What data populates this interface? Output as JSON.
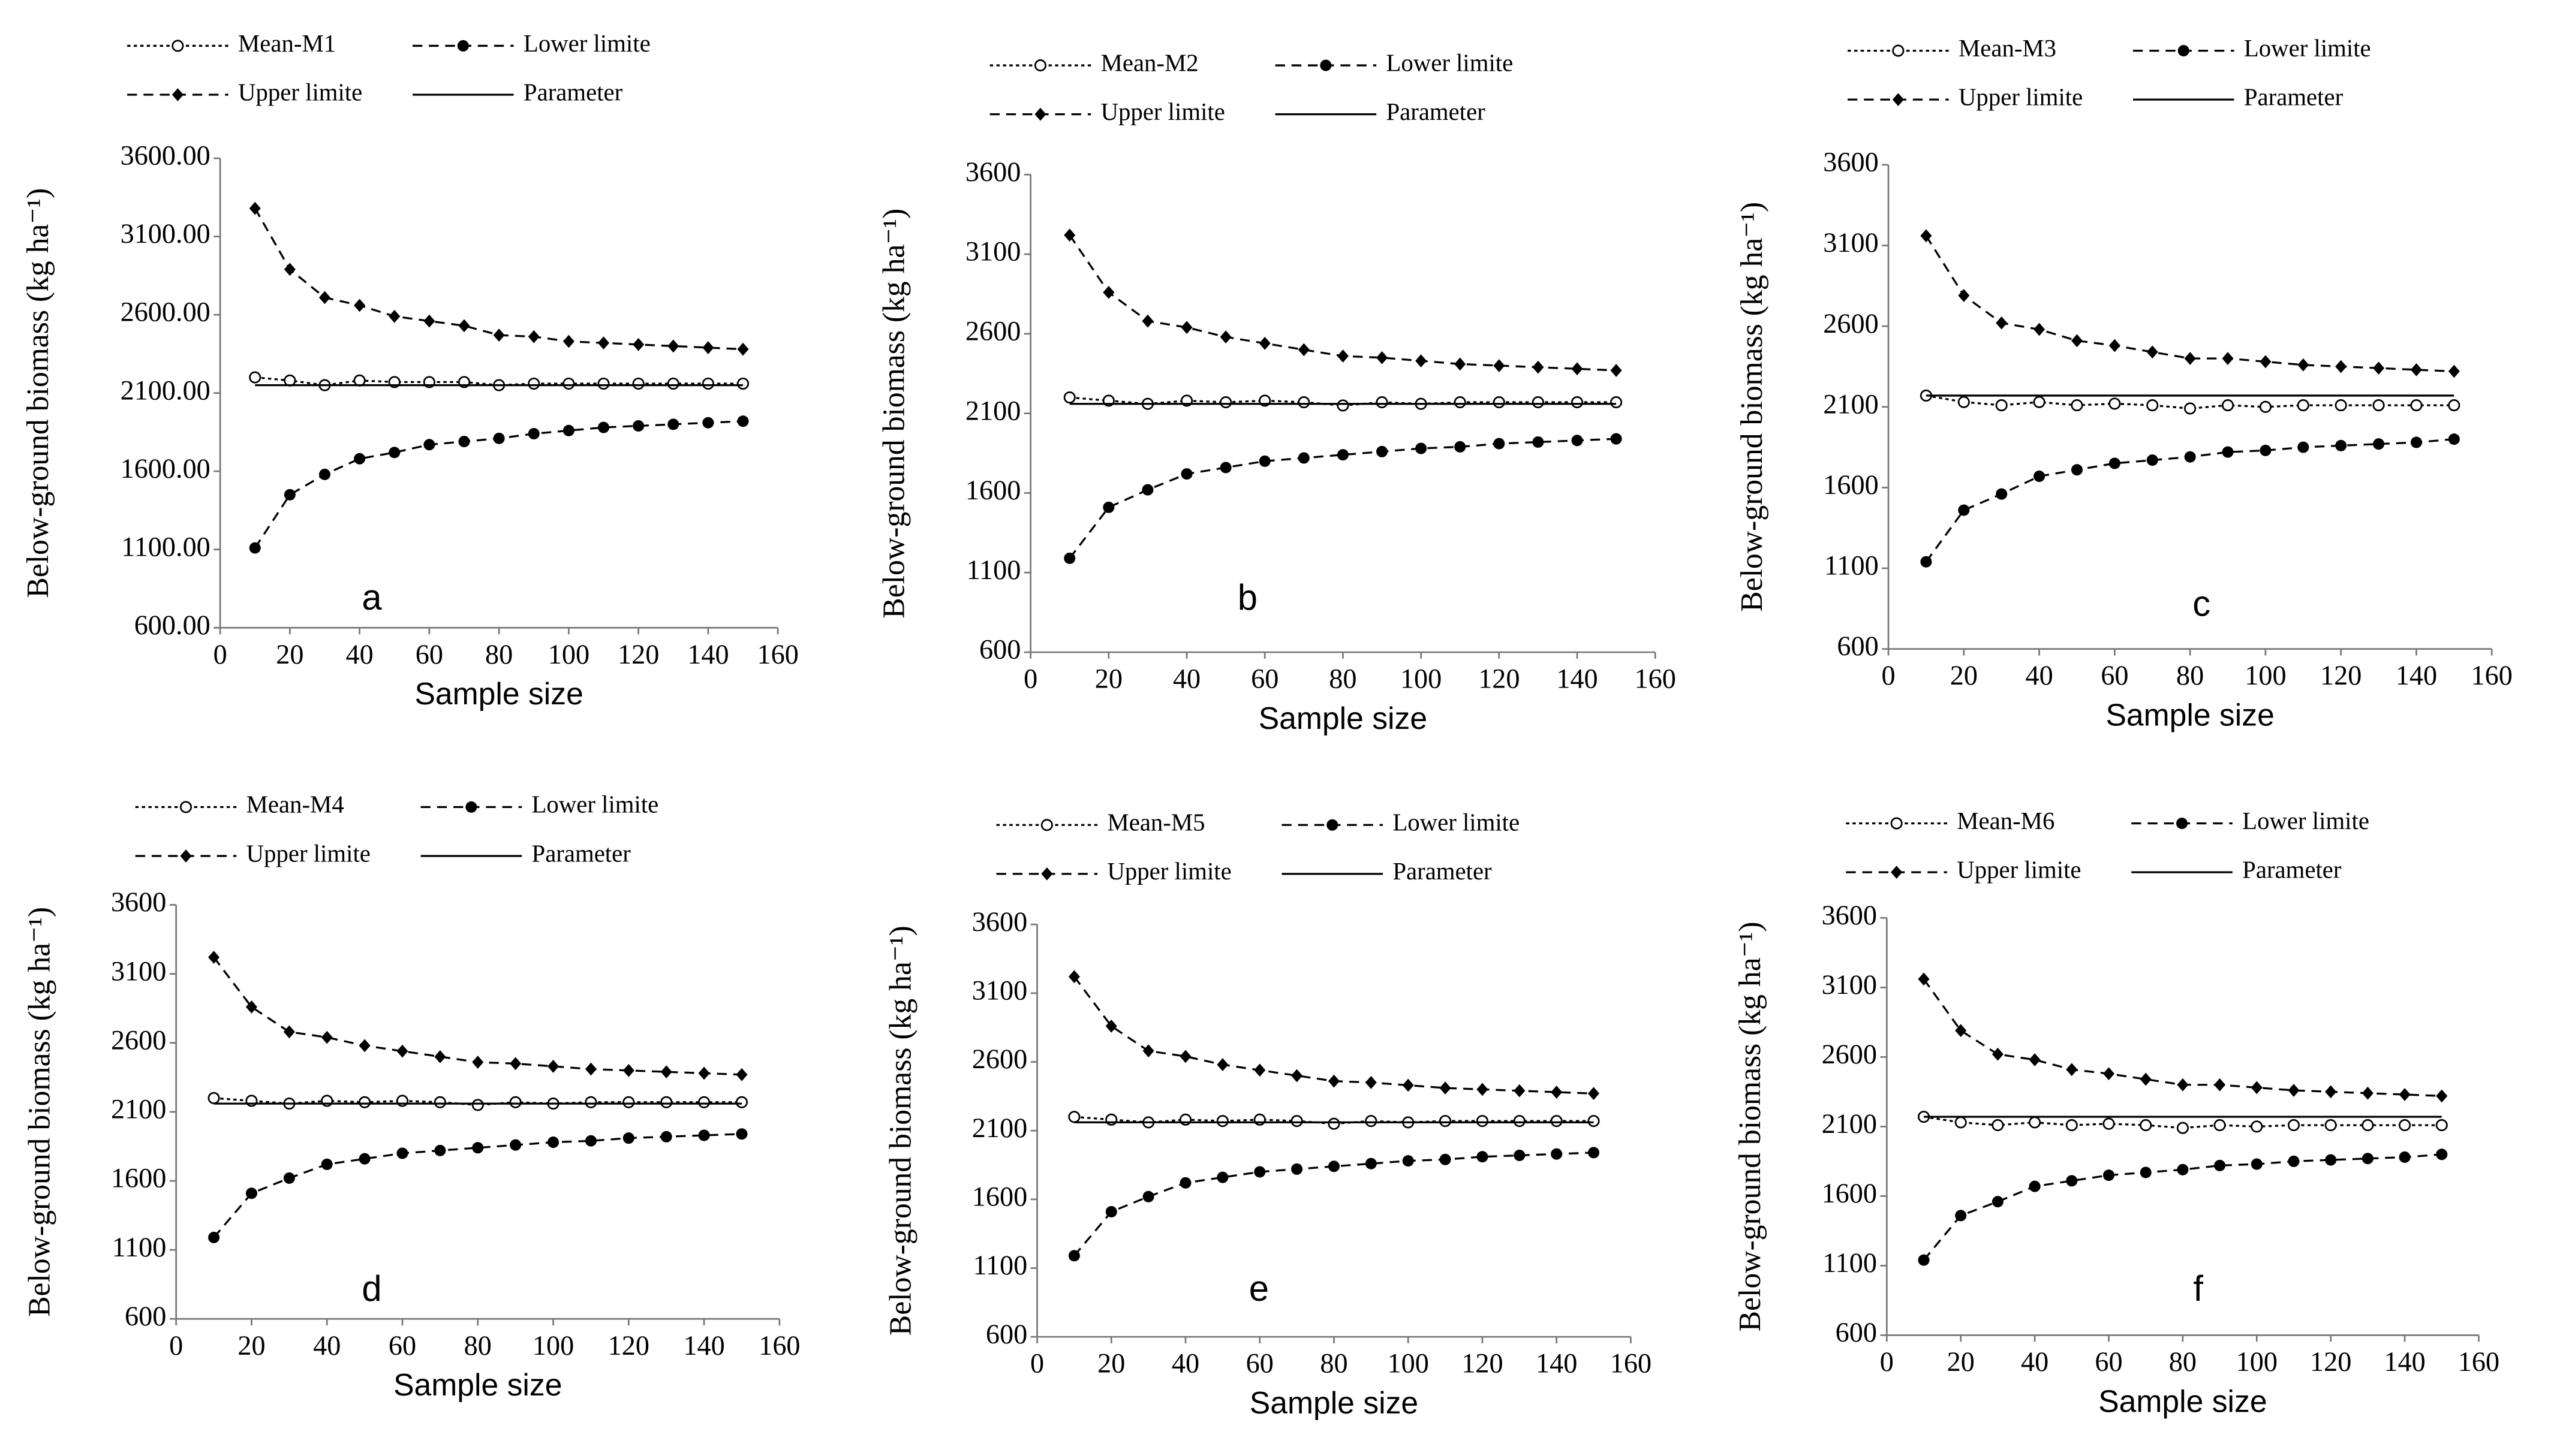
{
  "chart_data": [
    {
      "type": "line",
      "annotation": "a",
      "x_label": "Sample size",
      "y_label": "Below-ground biomass (kg ha⁻¹)",
      "x": [
        10,
        20,
        30,
        40,
        50,
        60,
        70,
        80,
        90,
        100,
        110,
        120,
        130,
        140,
        150
      ],
      "xlim": [
        0,
        160
      ],
      "xticks": [
        0,
        20,
        40,
        60,
        80,
        100,
        120,
        140,
        160
      ],
      "ylim": [
        600,
        3600
      ],
      "yticks": [
        {
          "value": 600,
          "label": "600.00"
        },
        {
          "value": 1100,
          "label": "1100.00"
        },
        {
          "value": 1600,
          "label": "1600.00"
        },
        {
          "value": 2100,
          "label": "2100.00"
        },
        {
          "value": 2600,
          "label": "2600.00"
        },
        {
          "value": 3100,
          "label": "3100.00"
        },
        {
          "value": 3600,
          "label": "3600.00"
        }
      ],
      "series": [
        {
          "name": "Mean-M1",
          "color": "#000000",
          "style": "dotted",
          "marker": "open-circle",
          "values": [
            2200,
            2180,
            2150,
            2180,
            2170,
            2170,
            2170,
            2150,
            2160,
            2160,
            2160,
            2160,
            2160,
            2160,
            2160
          ]
        },
        {
          "name": "Lower limite",
          "color": "#000000",
          "style": "dashed",
          "marker": "circle",
          "values": [
            1110,
            1450,
            1580,
            1680,
            1720,
            1770,
            1790,
            1810,
            1840,
            1860,
            1880,
            1890,
            1900,
            1910,
            1920
          ]
        },
        {
          "name": "Upper limite",
          "color": "#000000",
          "style": "dashed",
          "marker": "diamond",
          "values": [
            3280,
            2890,
            2710,
            2660,
            2590,
            2560,
            2530,
            2470,
            2460,
            2430,
            2420,
            2410,
            2400,
            2390,
            2380
          ]
        },
        {
          "name": "Parameter",
          "color": "#000000",
          "style": "solid",
          "marker": "none",
          "values": [
            2150,
            2150,
            2150,
            2150,
            2150,
            2150,
            2150,
            2150,
            2150,
            2150,
            2150,
            2150,
            2150,
            2150,
            2150
          ]
        }
      ]
    },
    {
      "type": "line",
      "annotation": "b",
      "x_label": "Sample size",
      "y_label": "Below-ground biomass (kg ha⁻¹)",
      "x": [
        10,
        20,
        30,
        40,
        50,
        60,
        70,
        80,
        90,
        100,
        110,
        120,
        130,
        140,
        150
      ],
      "xlim": [
        0,
        160
      ],
      "xticks": [
        0,
        20,
        40,
        60,
        80,
        100,
        120,
        140,
        160
      ],
      "ylim": [
        600,
        3600
      ],
      "yticks": [
        600,
        1100,
        1600,
        2100,
        2600,
        3100,
        3600
      ],
      "series": [
        {
          "name": "Mean-M2",
          "color": "#000000",
          "style": "dotted",
          "marker": "open-circle",
          "values": [
            2200,
            2180,
            2160,
            2180,
            2170,
            2180,
            2170,
            2150,
            2170,
            2160,
            2170,
            2170,
            2170,
            2170,
            2170
          ]
        },
        {
          "name": "Lower limite",
          "color": "#000000",
          "style": "dashed",
          "marker": "circle",
          "values": [
            1190,
            1510,
            1620,
            1720,
            1760,
            1800,
            1820,
            1840,
            1860,
            1880,
            1890,
            1910,
            1920,
            1930,
            1940
          ]
        },
        {
          "name": "Upper limite",
          "color": "#000000",
          "style": "dashed",
          "marker": "diamond",
          "values": [
            3220,
            2860,
            2680,
            2640,
            2580,
            2540,
            2500,
            2460,
            2450,
            2430,
            2410,
            2400,
            2390,
            2380,
            2370
          ]
        },
        {
          "name": "Parameter",
          "color": "#000000",
          "style": "solid",
          "marker": "none",
          "values": [
            2160,
            2160,
            2160,
            2160,
            2160,
            2160,
            2160,
            2160,
            2160,
            2160,
            2160,
            2160,
            2160,
            2160,
            2160
          ]
        }
      ]
    },
    {
      "type": "line",
      "annotation": "c",
      "x_label": "Sample size",
      "y_label": "Below-ground biomass (kg ha⁻¹)",
      "x": [
        10,
        20,
        30,
        40,
        50,
        60,
        70,
        80,
        90,
        100,
        110,
        120,
        130,
        140,
        150
      ],
      "xlim": [
        0,
        160
      ],
      "xticks": [
        0,
        20,
        40,
        60,
        80,
        100,
        120,
        140,
        160
      ],
      "ylim": [
        600,
        3600
      ],
      "yticks": [
        600,
        1100,
        1600,
        2100,
        2600,
        3100,
        3600
      ],
      "series": [
        {
          "name": "Mean-M3",
          "color": "#000000",
          "style": "dotted",
          "marker": "open-circle",
          "values": [
            2170,
            2130,
            2110,
            2130,
            2110,
            2120,
            2110,
            2090,
            2110,
            2100,
            2110,
            2110,
            2110,
            2110,
            2110
          ]
        },
        {
          "name": "Lower limite",
          "color": "#000000",
          "style": "dashed",
          "marker": "circle",
          "values": [
            1140,
            1460,
            1560,
            1670,
            1710,
            1750,
            1770,
            1790,
            1820,
            1830,
            1850,
            1860,
            1870,
            1880,
            1900
          ]
        },
        {
          "name": "Upper limite",
          "color": "#000000",
          "style": "dashed",
          "marker": "diamond",
          "values": [
            3160,
            2790,
            2620,
            2580,
            2510,
            2480,
            2440,
            2400,
            2400,
            2380,
            2360,
            2350,
            2340,
            2330,
            2320
          ]
        },
        {
          "name": "Parameter",
          "color": "#000000",
          "style": "solid",
          "marker": "none",
          "values": [
            2170,
            2170,
            2170,
            2170,
            2170,
            2170,
            2170,
            2170,
            2170,
            2170,
            2170,
            2170,
            2170,
            2170,
            2170
          ]
        }
      ]
    },
    {
      "type": "line",
      "annotation": "d",
      "x_label": "Sample size",
      "y_label": "Below-ground biomass (kg ha⁻¹)",
      "x": [
        10,
        20,
        30,
        40,
        50,
        60,
        70,
        80,
        90,
        100,
        110,
        120,
        130,
        140,
        150
      ],
      "xlim": [
        0,
        160
      ],
      "xticks": [
        0,
        20,
        40,
        60,
        80,
        100,
        120,
        140,
        160
      ],
      "ylim": [
        600,
        3600
      ],
      "yticks": [
        600,
        1100,
        1600,
        2100,
        2600,
        3100,
        3600
      ],
      "series": [
        {
          "name": "Mean-M4",
          "color": "#000000",
          "style": "dotted",
          "marker": "open-circle",
          "values": [
            2200,
            2180,
            2160,
            2180,
            2170,
            2180,
            2170,
            2150,
            2170,
            2160,
            2170,
            2170,
            2170,
            2170,
            2170
          ]
        },
        {
          "name": "Lower limite",
          "color": "#000000",
          "style": "dashed",
          "marker": "circle",
          "values": [
            1190,
            1510,
            1620,
            1720,
            1760,
            1800,
            1820,
            1840,
            1860,
            1880,
            1890,
            1910,
            1920,
            1930,
            1940
          ]
        },
        {
          "name": "Upper limite",
          "color": "#000000",
          "style": "dashed",
          "marker": "diamond",
          "values": [
            3220,
            2860,
            2680,
            2640,
            2580,
            2540,
            2500,
            2460,
            2450,
            2430,
            2410,
            2400,
            2390,
            2380,
            2370
          ]
        },
        {
          "name": "Parameter",
          "color": "#000000",
          "style": "solid",
          "marker": "none",
          "values": [
            2160,
            2160,
            2160,
            2160,
            2160,
            2160,
            2160,
            2160,
            2160,
            2160,
            2160,
            2160,
            2160,
            2160,
            2160
          ]
        }
      ]
    },
    {
      "type": "line",
      "annotation": "e",
      "x_label": "Sample size",
      "y_label": "Below-ground biomass (kg ha⁻¹)",
      "x": [
        10,
        20,
        30,
        40,
        50,
        60,
        70,
        80,
        90,
        100,
        110,
        120,
        130,
        140,
        150
      ],
      "xlim": [
        0,
        160
      ],
      "xticks": [
        0,
        20,
        40,
        60,
        80,
        100,
        120,
        140,
        160
      ],
      "ylim": [
        600,
        3600
      ],
      "yticks": [
        600,
        1100,
        1600,
        2100,
        2600,
        3100,
        3600
      ],
      "series": [
        {
          "name": "Mean-M5",
          "color": "#000000",
          "style": "dotted",
          "marker": "open-circle",
          "values": [
            2200,
            2180,
            2160,
            2180,
            2170,
            2180,
            2170,
            2150,
            2170,
            2160,
            2170,
            2170,
            2170,
            2170,
            2170
          ]
        },
        {
          "name": "Lower limite",
          "color": "#000000",
          "style": "dashed",
          "marker": "circle",
          "values": [
            1190,
            1510,
            1620,
            1720,
            1760,
            1800,
            1820,
            1840,
            1860,
            1880,
            1890,
            1910,
            1920,
            1930,
            1940
          ]
        },
        {
          "name": "Upper limite",
          "color": "#000000",
          "style": "dashed",
          "marker": "diamond",
          "values": [
            3220,
            2860,
            2680,
            2640,
            2580,
            2540,
            2500,
            2460,
            2450,
            2430,
            2410,
            2400,
            2390,
            2380,
            2370
          ]
        },
        {
          "name": "Parameter",
          "color": "#000000",
          "style": "solid",
          "marker": "none",
          "values": [
            2160,
            2160,
            2160,
            2160,
            2160,
            2160,
            2160,
            2160,
            2160,
            2160,
            2160,
            2160,
            2160,
            2160,
            2160
          ]
        }
      ]
    },
    {
      "type": "line",
      "annotation": "f",
      "x_label": "Sample size",
      "y_label": "Below-ground biomass (kg ha⁻¹)",
      "x": [
        10,
        20,
        30,
        40,
        50,
        60,
        70,
        80,
        90,
        100,
        110,
        120,
        130,
        140,
        150
      ],
      "xlim": [
        0,
        160
      ],
      "xticks": [
        0,
        20,
        40,
        60,
        80,
        100,
        120,
        140,
        160
      ],
      "ylim": [
        600,
        3600
      ],
      "yticks": [
        600,
        1100,
        1600,
        2100,
        2600,
        3100,
        3600
      ],
      "series": [
        {
          "name": "Mean-M6",
          "color": "#000000",
          "style": "dotted",
          "marker": "open-circle",
          "values": [
            2170,
            2130,
            2110,
            2130,
            2110,
            2120,
            2110,
            2090,
            2110,
            2100,
            2110,
            2110,
            2110,
            2110,
            2110
          ]
        },
        {
          "name": "Lower limite",
          "color": "#000000",
          "style": "dashed",
          "marker": "circle",
          "values": [
            1140,
            1460,
            1560,
            1670,
            1710,
            1750,
            1770,
            1790,
            1820,
            1830,
            1850,
            1860,
            1870,
            1880,
            1900
          ]
        },
        {
          "name": "Upper limite",
          "color": "#000000",
          "style": "dashed",
          "marker": "diamond",
          "values": [
            3160,
            2790,
            2620,
            2580,
            2510,
            2480,
            2440,
            2400,
            2400,
            2380,
            2360,
            2350,
            2340,
            2330,
            2320
          ]
        },
        {
          "name": "Parameter",
          "color": "#000000",
          "style": "solid",
          "marker": "none",
          "values": [
            2170,
            2170,
            2170,
            2170,
            2170,
            2170,
            2170,
            2170,
            2170,
            2170,
            2170,
            2170,
            2170,
            2170,
            2170
          ]
        }
      ]
    }
  ]
}
